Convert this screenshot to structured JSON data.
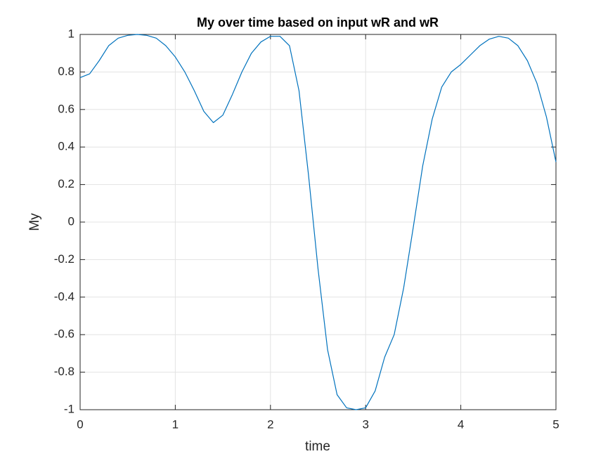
{
  "chart_data": {
    "type": "line",
    "title": "My over time based on input wR and wR",
    "xlabel": "time",
    "ylabel": "My",
    "x": [
      0,
      0.1,
      0.2,
      0.3,
      0.4,
      0.5,
      0.6,
      0.7,
      0.8,
      0.9,
      1.0,
      1.1,
      1.2,
      1.3,
      1.4,
      1.5,
      1.6,
      1.7,
      1.8,
      1.9,
      2.0,
      2.1,
      2.2,
      2.3,
      2.4,
      2.5,
      2.6,
      2.7,
      2.8,
      2.9,
      3.0,
      3.1,
      3.2,
      3.3,
      3.4,
      3.5,
      3.6,
      3.7,
      3.8,
      3.9,
      4.0,
      4.1,
      4.2,
      4.3,
      4.4,
      4.5,
      4.6,
      4.7,
      4.8,
      4.9,
      5.0
    ],
    "series": [
      {
        "name": "My",
        "color": "#0072bd",
        "values": [
          0.77,
          0.79,
          0.86,
          0.94,
          0.98,
          0.995,
          1.0,
          0.995,
          0.98,
          0.94,
          0.88,
          0.8,
          0.7,
          0.59,
          0.53,
          0.57,
          0.68,
          0.8,
          0.9,
          0.96,
          0.99,
          0.99,
          0.94,
          0.7,
          0.25,
          -0.25,
          -0.68,
          -0.92,
          -0.99,
          -1.0,
          -0.99,
          -0.9,
          -0.72,
          -0.6,
          -0.35,
          -0.03,
          0.3,
          0.55,
          0.72,
          0.8,
          0.84,
          0.89,
          0.94,
          0.975,
          0.99,
          0.98,
          0.94,
          0.86,
          0.74,
          0.56,
          0.32
        ]
      }
    ],
    "xlim": [
      0,
      5
    ],
    "ylim": [
      -1,
      1
    ],
    "xticks": [
      0,
      1,
      2,
      3,
      4,
      5
    ],
    "yticks": [
      -1,
      -0.8,
      -0.6,
      -0.4,
      -0.2,
      0,
      0.2,
      0.4,
      0.6,
      0.8,
      1
    ],
    "grid": true
  }
}
